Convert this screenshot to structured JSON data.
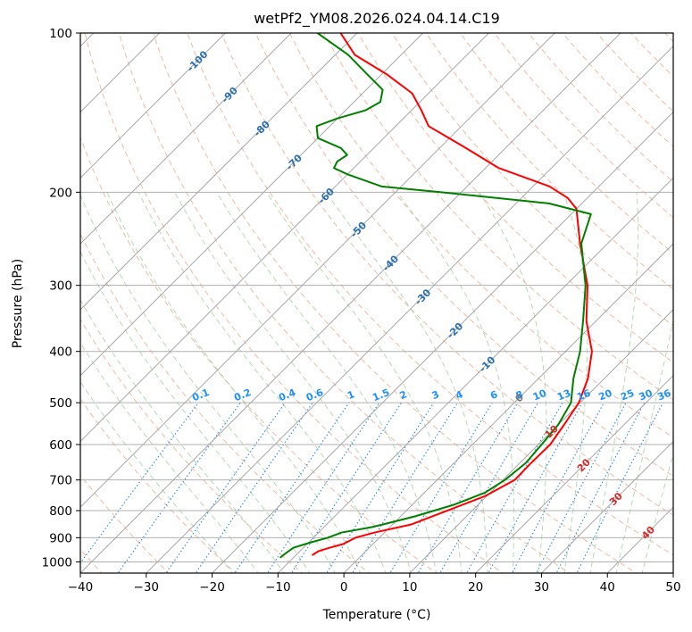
{
  "chart_data": {
    "type": "line",
    "title": "wetPf2_YM08.2026.024.04.14.C19",
    "xlabel": "Temperature (°C)",
    "ylabel": "Pressure (hPa)",
    "xlim": [
      -40,
      50
    ],
    "ylim": [
      1050,
      100
    ],
    "y_scale": "log",
    "skew_degrees": 45,
    "grid": true,
    "x_ticks": [
      -40,
      -30,
      -20,
      -10,
      0,
      10,
      20,
      30,
      40,
      50
    ],
    "x_tick_labels": [
      "−40",
      "−30",
      "−20",
      "−10",
      "0",
      "10",
      "20",
      "30",
      "40",
      "50"
    ],
    "y_ticks": [
      1000,
      900,
      800,
      700,
      600,
      500,
      400,
      300,
      200,
      100
    ],
    "y_tick_labels": [
      "1000",
      "900",
      "800",
      "700",
      "600",
      "500",
      "400",
      "300",
      "200",
      "100"
    ],
    "isotherm_labels": [
      "-100",
      "-90",
      "-80",
      "-70",
      "-60",
      "-50",
      "-40",
      "-30",
      "-20",
      "-10",
      "0",
      "10",
      "20",
      "30",
      "40"
    ],
    "mixing_ratio_labels": [
      "0.1",
      "0.2",
      "0.4",
      "0.6",
      "1",
      "1.5",
      "2",
      "3",
      "4",
      "6",
      "8",
      "10",
      "13",
      "16",
      "20",
      "25",
      "30",
      "36"
    ],
    "mixing_ratio_values": [
      0.1,
      0.2,
      0.4,
      0.6,
      1,
      1.5,
      2,
      3,
      4,
      6,
      8,
      10,
      13,
      16,
      20,
      25,
      30,
      36
    ],
    "series": [
      {
        "role": "temperature",
        "color": "#ff0000",
        "pressure": [
          970,
          955,
          940,
          925,
          900,
          880,
          850,
          800,
          750,
          700,
          650,
          600,
          550,
          500,
          450,
          400,
          350,
          300,
          250,
          215,
          205,
          195,
          180,
          165,
          150,
          140,
          130,
          120,
          110,
          100
        ],
        "temperature": [
          -7.5,
          -7.2,
          -6.0,
          -4.5,
          -3.6,
          -1.5,
          2.8,
          6.2,
          9.8,
          11.8,
          11.7,
          11.8,
          10.9,
          9.8,
          7.5,
          4.0,
          -1.5,
          -6.7,
          -14.2,
          -20.0,
          -23.0,
          -27.5,
          -38.0,
          -46.0,
          -55.0,
          -58.5,
          -62.5,
          -69.0,
          -77.0,
          -82.5
        ]
      },
      {
        "role": "dewpoint",
        "color": "#008000",
        "pressure": [
          980,
          960,
          940,
          920,
          900,
          880,
          860,
          850,
          820,
          780,
          740,
          700,
          650,
          600,
          550,
          500,
          450,
          400,
          350,
          300,
          250,
          220,
          210,
          200,
          195,
          185,
          180,
          175,
          170,
          165,
          158,
          150,
          145,
          140,
          135,
          128,
          120,
          110,
          100
        ],
        "temperature": [
          -12.0,
          -11.8,
          -11.5,
          -9.8,
          -7.8,
          -6.5,
          -2.8,
          -1.5,
          2.2,
          6.3,
          9.2,
          10.3,
          10.9,
          10.5,
          10.0,
          8.6,
          5.3,
          2.2,
          -2.0,
          -7.0,
          -14.0,
          -17.0,
          -25.0,
          -43.0,
          -53.0,
          -60.0,
          -63.0,
          -63.5,
          -63.0,
          -65.0,
          -70.0,
          -72.0,
          -70.0,
          -67.0,
          -66.0,
          -67.5,
          -72.0,
          -78.0,
          -86.0
        ]
      }
    ]
  }
}
